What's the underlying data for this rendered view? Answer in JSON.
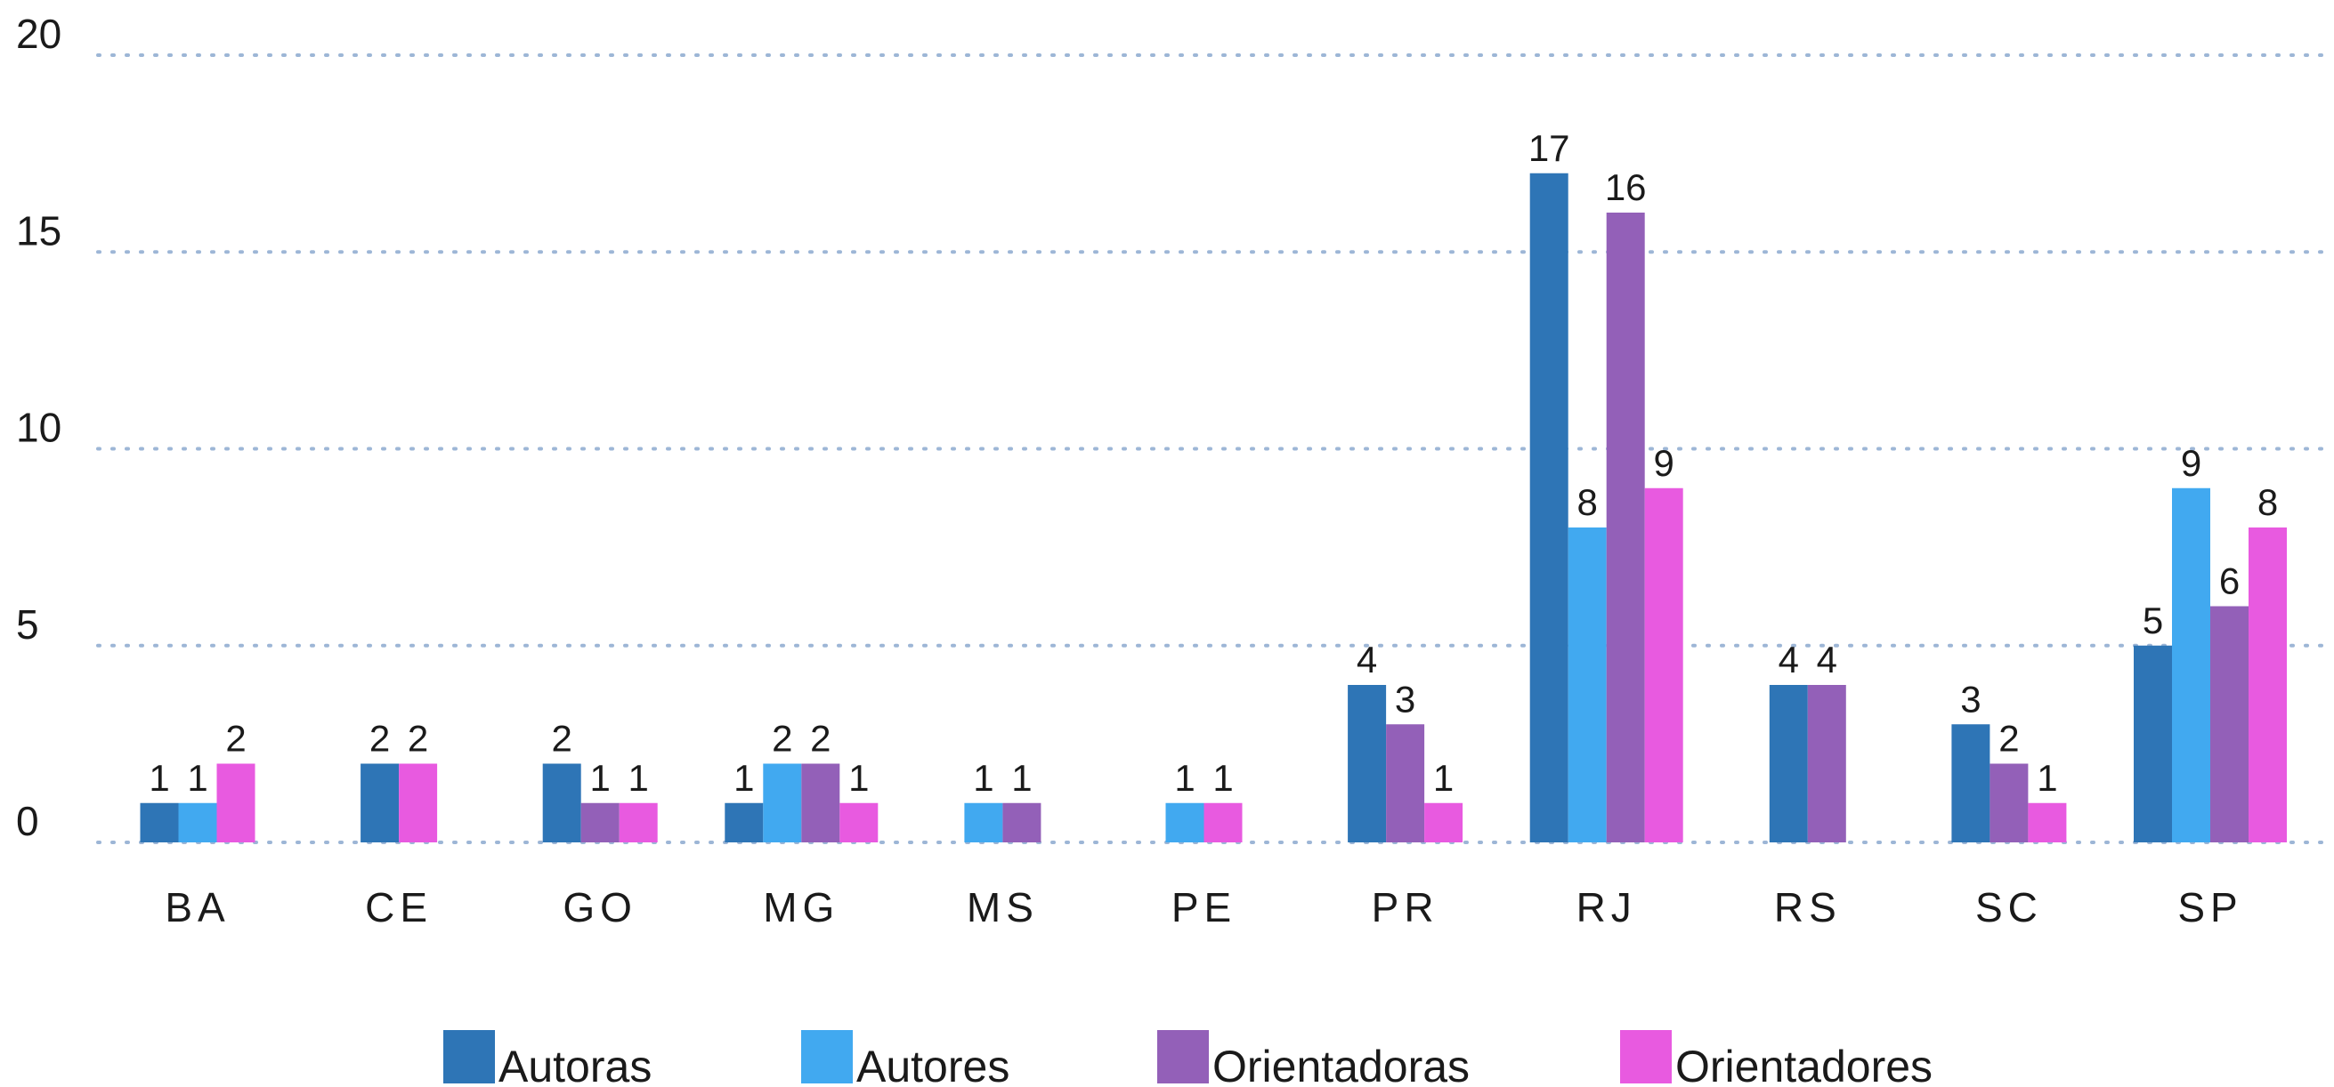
{
  "chart_data": {
    "type": "bar",
    "title": "",
    "xlabel": "",
    "ylabel": "",
    "ylim": [
      0,
      20
    ],
    "yticks": [
      0,
      5,
      10,
      15,
      20
    ],
    "ytick_labels": [
      "0",
      "5",
      "10",
      "15",
      "20"
    ],
    "grid": true,
    "legend_position": "bottom",
    "categories": [
      "BA",
      "CE",
      "GO",
      "MG",
      "MS",
      "PE",
      "PR",
      "RJ",
      "RS",
      "SC",
      "SP"
    ],
    "series": [
      {
        "name": "Autoras",
        "color": "#2e75b6",
        "values": [
          1,
          2,
          2,
          1,
          null,
          null,
          4,
          17,
          4,
          3,
          5
        ]
      },
      {
        "name": "Autores",
        "color": "#41a9f0",
        "values": [
          1,
          null,
          null,
          2,
          1,
          1,
          null,
          8,
          null,
          null,
          9
        ]
      },
      {
        "name": "Orientadoras",
        "color": "#9360b8",
        "values": [
          null,
          null,
          1,
          2,
          1,
          null,
          3,
          16,
          4,
          2,
          6
        ]
      },
      {
        "name": "Orientadores",
        "color": "#e85ae0",
        "values": [
          2,
          2,
          1,
          1,
          null,
          1,
          1,
          9,
          null,
          1,
          8
        ]
      }
    ]
  }
}
